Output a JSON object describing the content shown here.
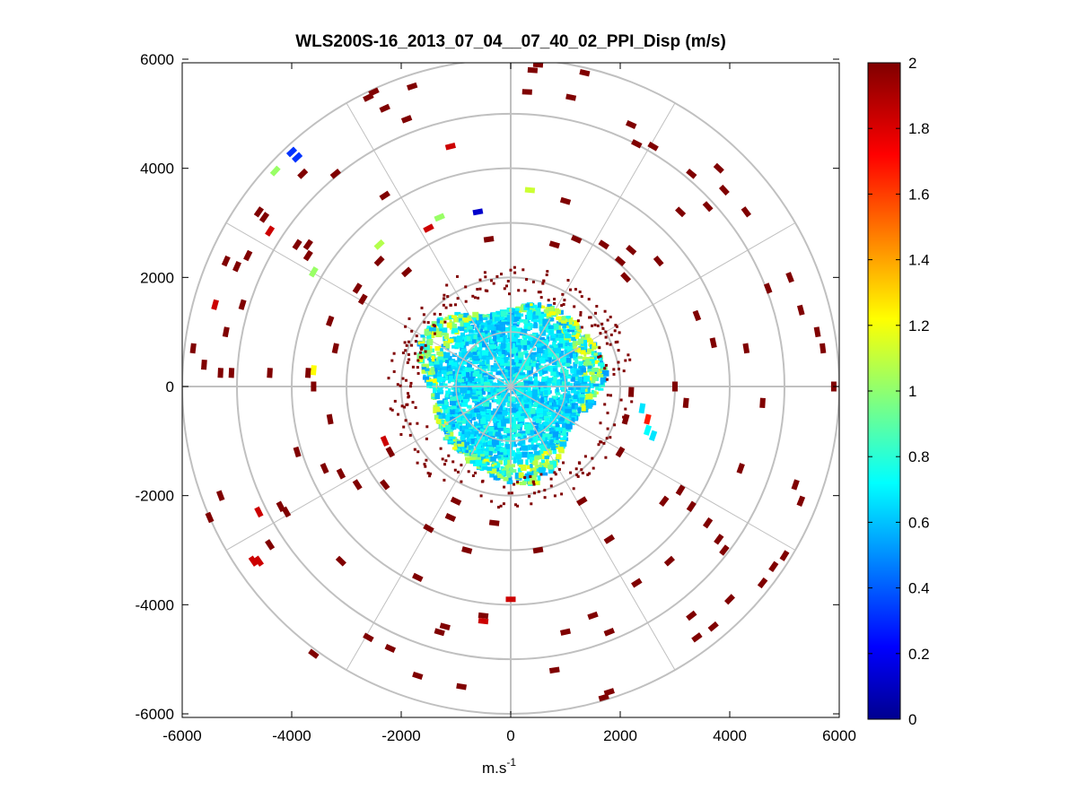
{
  "chart_data": {
    "type": "scatter",
    "subtype": "polar PPI (plan position indicator) scan",
    "title": "WLS200S-16_2013_07_04__07_40_02_PPI_Disp (m/s)",
    "xlabel": "m.s",
    "xlabel_superscript": "-1",
    "ylabel": "",
    "xlim": [
      -6000,
      6000
    ],
    "ylim": [
      -6000,
      6000
    ],
    "xticks": [
      "-6000",
      "-4000",
      "-2000",
      "0",
      "2000",
      "4000",
      "6000"
    ],
    "yticks": [
      "6000",
      "4000",
      "2000",
      "0",
      "-2000",
      "-4000",
      "-6000"
    ],
    "polar_grid": {
      "ring_radii": [
        1000,
        2000,
        3000,
        4000,
        5000,
        6000
      ],
      "spoke_angles_deg": [
        0,
        30,
        60,
        90,
        120,
        150,
        180,
        210,
        240,
        270,
        300,
        330
      ],
      "color": "#c0c0c0"
    },
    "colorbar": {
      "colormap": "jet",
      "range": [
        0,
        2
      ],
      "ticks": [
        "2",
        "1.8",
        "1.6",
        "1.4",
        "1.2",
        "1",
        "0.8",
        "0.6",
        "0.4",
        "0.2",
        "0"
      ]
    },
    "dense_region": {
      "center": [
        0,
        0
      ],
      "approx_radius": 1600,
      "dominant_value_range": [
        0.55,
        0.85
      ]
    },
    "sparse_points": [
      {
        "x": 500,
        "y": 5900,
        "v": 2
      },
      {
        "x": 400,
        "y": 5800,
        "v": 2
      },
      {
        "x": 1350,
        "y": 5750,
        "v": 2
      },
      {
        "x": -2500,
        "y": 5400,
        "v": 2
      },
      {
        "x": -2600,
        "y": 5300,
        "v": 2
      },
      {
        "x": -1800,
        "y": 5500,
        "v": 2
      },
      {
        "x": -1900,
        "y": 4900,
        "v": 2
      },
      {
        "x": -2300,
        "y": 5100,
        "v": 2
      },
      {
        "x": 300,
        "y": 5400,
        "v": 2
      },
      {
        "x": 1100,
        "y": 5300,
        "v": 2
      },
      {
        "x": 2200,
        "y": 4800,
        "v": 2
      },
      {
        "x": 2300,
        "y": 4450,
        "v": 2
      },
      {
        "x": -4000,
        "y": 4300,
        "v": 0.35
      },
      {
        "x": -3900,
        "y": 4200,
        "v": 0.35
      },
      {
        "x": -1100,
        "y": 4400,
        "v": 1.85
      },
      {
        "x": -4300,
        "y": 3950,
        "v": 1.05
      },
      {
        "x": -4600,
        "y": 3200,
        "v": 2
      },
      {
        "x": -4500,
        "y": 3100,
        "v": 2
      },
      {
        "x": -4400,
        "y": 2850,
        "v": 1.85
      },
      {
        "x": -3800,
        "y": 3900,
        "v": 2
      },
      {
        "x": -3200,
        "y": 3900,
        "v": 2
      },
      {
        "x": -2300,
        "y": 3500,
        "v": 2
      },
      {
        "x": 3300,
        "y": 3900,
        "v": 2
      },
      {
        "x": 3800,
        "y": 4000,
        "v": 2
      },
      {
        "x": 3900,
        "y": 3600,
        "v": 2
      },
      {
        "x": 2600,
        "y": 4400,
        "v": 2
      },
      {
        "x": 3100,
        "y": 3200,
        "v": 2
      },
      {
        "x": 4300,
        "y": 3200,
        "v": 2
      },
      {
        "x": 3600,
        "y": 3300,
        "v": 2
      },
      {
        "x": -600,
        "y": 3200,
        "v": 0.15
      },
      {
        "x": 350,
        "y": 3600,
        "v": 1.15
      },
      {
        "x": 1000,
        "y": 3400,
        "v": 2
      },
      {
        "x": -1300,
        "y": 3100,
        "v": 1.05
      },
      {
        "x": -1500,
        "y": 2900,
        "v": 1.85
      },
      {
        "x": -3700,
        "y": 2600,
        "v": 2
      },
      {
        "x": -3900,
        "y": 2600,
        "v": 2
      },
      {
        "x": -2400,
        "y": 2600,
        "v": 1.1
      },
      {
        "x": -3600,
        "y": 2100,
        "v": 1.05
      },
      {
        "x": -3700,
        "y": 2400,
        "v": 2
      },
      {
        "x": -4800,
        "y": 2400,
        "v": 2
      },
      {
        "x": -5200,
        "y": 2300,
        "v": 2
      },
      {
        "x": -5000,
        "y": 2200,
        "v": 2
      },
      {
        "x": -5400,
        "y": 1500,
        "v": 1.85
      },
      {
        "x": -4900,
        "y": 1500,
        "v": 2
      },
      {
        "x": -5200,
        "y": 1000,
        "v": 2
      },
      {
        "x": -5800,
        "y": 700,
        "v": 2
      },
      {
        "x": -5600,
        "y": 400,
        "v": 2
      },
      {
        "x": -5300,
        "y": 250,
        "v": 2
      },
      {
        "x": -5100,
        "y": 250,
        "v": 2
      },
      {
        "x": -4400,
        "y": 250,
        "v": 2
      },
      {
        "x": -3700,
        "y": 250,
        "v": 2
      },
      {
        "x": -3600,
        "y": 300,
        "v": 1.25
      },
      {
        "x": -3600,
        "y": 0,
        "v": 2
      },
      {
        "x": -3200,
        "y": 700,
        "v": 2
      },
      {
        "x": -2800,
        "y": 1800,
        "v": 2
      },
      {
        "x": -2700,
        "y": 1600,
        "v": 2
      },
      {
        "x": 5100,
        "y": 2000,
        "v": 2
      },
      {
        "x": 5300,
        "y": 1400,
        "v": 2
      },
      {
        "x": 5600,
        "y": 1000,
        "v": 2
      },
      {
        "x": 5700,
        "y": 700,
        "v": 2
      },
      {
        "x": 4700,
        "y": 1800,
        "v": 2
      },
      {
        "x": 4300,
        "y": 700,
        "v": 2
      },
      {
        "x": 3700,
        "y": 800,
        "v": 2
      },
      {
        "x": 3400,
        "y": 1300,
        "v": 2
      },
      {
        "x": 2700,
        "y": 2300,
        "v": 2
      },
      {
        "x": 2200,
        "y": 2500,
        "v": 2
      },
      {
        "x": 2000,
        "y": 2300,
        "v": 2
      },
      {
        "x": 5900,
        "y": 0,
        "v": 2
      },
      {
        "x": 4600,
        "y": -300,
        "v": 2
      },
      {
        "x": 3200,
        "y": -300,
        "v": 2
      },
      {
        "x": 3000,
        "y": 0,
        "v": 2
      },
      {
        "x": 2400,
        "y": -400,
        "v": 0.7
      },
      {
        "x": 2500,
        "y": -800,
        "v": 0.75
      },
      {
        "x": 2600,
        "y": -900,
        "v": 0.7
      },
      {
        "x": 2500,
        "y": -600,
        "v": 1.7
      },
      {
        "x": 2200,
        "y": -100,
        "v": 2
      },
      {
        "x": 2100,
        "y": -600,
        "v": 2
      },
      {
        "x": 3100,
        "y": -1900,
        "v": 2
      },
      {
        "x": 3300,
        "y": -2200,
        "v": 2
      },
      {
        "x": 3600,
        "y": -2500,
        "v": 2
      },
      {
        "x": 3800,
        "y": -2800,
        "v": 2
      },
      {
        "x": 3900,
        "y": -3000,
        "v": 2
      },
      {
        "x": 5200,
        "y": -1800,
        "v": 2
      },
      {
        "x": 5300,
        "y": -2100,
        "v": 2
      },
      {
        "x": 5000,
        "y": -3100,
        "v": 2
      },
      {
        "x": 4800,
        "y": -3300,
        "v": 2
      },
      {
        "x": 4600,
        "y": -3600,
        "v": 2
      },
      {
        "x": 3300,
        "y": -4200,
        "v": 2
      },
      {
        "x": 3400,
        "y": -4600,
        "v": 2
      },
      {
        "x": 3700,
        "y": -4400,
        "v": 2
      },
      {
        "x": 4000,
        "y": -3900,
        "v": 2
      },
      {
        "x": 1700,
        "y": -5700,
        "v": 2
      },
      {
        "x": 1800,
        "y": -5600,
        "v": 2
      },
      {
        "x": 800,
        "y": -5200,
        "v": 2
      },
      {
        "x": 1000,
        "y": -4500,
        "v": 2
      },
      {
        "x": 1500,
        "y": -4200,
        "v": 2
      },
      {
        "x": 1800,
        "y": -4500,
        "v": 2
      },
      {
        "x": 0,
        "y": -3900,
        "v": 1.85
      },
      {
        "x": -500,
        "y": -4200,
        "v": 2
      },
      {
        "x": -500,
        "y": -4300,
        "v": 1.85
      },
      {
        "x": -1200,
        "y": -4400,
        "v": 2
      },
      {
        "x": -1300,
        "y": -4500,
        "v": 2
      },
      {
        "x": -900,
        "y": -5500,
        "v": 2
      },
      {
        "x": -1700,
        "y": -5300,
        "v": 2
      },
      {
        "x": -2200,
        "y": -4800,
        "v": 2
      },
      {
        "x": -2600,
        "y": -4600,
        "v": 2
      },
      {
        "x": -4600,
        "y": -2300,
        "v": 1.85
      },
      {
        "x": -4600,
        "y": -3200,
        "v": 1.85
      },
      {
        "x": -4700,
        "y": -3200,
        "v": 1.85
      },
      {
        "x": -4200,
        "y": -2200,
        "v": 2
      },
      {
        "x": -4100,
        "y": -2300,
        "v": 2
      },
      {
        "x": -5300,
        "y": -2000,
        "v": 2
      },
      {
        "x": -5500,
        "y": -2400,
        "v": 2
      },
      {
        "x": -4400,
        "y": -2900,
        "v": 2
      },
      {
        "x": -3400,
        "y": -1500,
        "v": 2
      },
      {
        "x": -3100,
        "y": -1600,
        "v": 2
      },
      {
        "x": -2800,
        "y": -1800,
        "v": 2
      },
      {
        "x": -2300,
        "y": -1800,
        "v": 2
      },
      {
        "x": -2200,
        "y": -1200,
        "v": 2
      },
      {
        "x": -2300,
        "y": -1000,
        "v": 1.85
      },
      {
        "x": -1000,
        "y": -2100,
        "v": 2
      },
      {
        "x": -1100,
        "y": -2400,
        "v": 2
      },
      {
        "x": -800,
        "y": -3000,
        "v": 2
      },
      {
        "x": -300,
        "y": -2500,
        "v": 2
      },
      {
        "x": 500,
        "y": -3000,
        "v": 2
      },
      {
        "x": 1300,
        "y": -2100,
        "v": 2
      },
      {
        "x": 1800,
        "y": -2800,
        "v": 2
      },
      {
        "x": 2000,
        "y": -1200,
        "v": 2
      },
      {
        "x": 2900,
        "y": -3200,
        "v": 2
      },
      {
        "x": 2300,
        "y": -3600,
        "v": 2
      },
      {
        "x": -1500,
        "y": -2600,
        "v": 2
      },
      {
        "x": -1700,
        "y": -3500,
        "v": 2
      },
      {
        "x": -3100,
        "y": -3200,
        "v": 2
      },
      {
        "x": -3600,
        "y": -4900,
        "v": 2
      },
      {
        "x": 1200,
        "y": 2700,
        "v": 2
      },
      {
        "x": 1700,
        "y": 2600,
        "v": 2
      },
      {
        "x": 2100,
        "y": 2000,
        "v": 2
      },
      {
        "x": -1900,
        "y": 2100,
        "v": 2
      },
      {
        "x": -2400,
        "y": 2300,
        "v": 2
      },
      {
        "x": -400,
        "y": 2700,
        "v": 2
      },
      {
        "x": 800,
        "y": 2600,
        "v": 2
      },
      {
        "x": -3300,
        "y": 1200,
        "v": 2
      },
      {
        "x": -3900,
        "y": -1200,
        "v": 2
      },
      {
        "x": -3300,
        "y": -600,
        "v": 2
      },
      {
        "x": 4200,
        "y": -1500,
        "v": 2
      },
      {
        "x": 2800,
        "y": -2100,
        "v": 2
      }
    ]
  }
}
